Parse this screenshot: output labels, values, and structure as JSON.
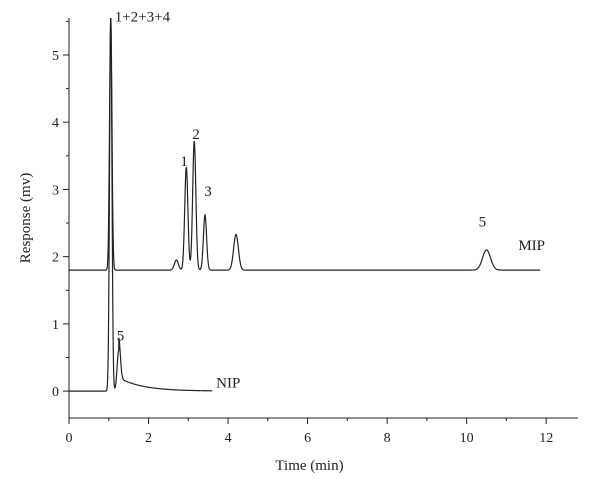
{
  "chart_data": {
    "type": "line",
    "xlabel": "Time (min)",
    "ylabel": "Response (mv)",
    "xlim": [
      0,
      12.8
    ],
    "ylim": [
      -0.4,
      5.55
    ],
    "xticks": [
      0,
      2,
      4,
      6,
      8,
      10,
      12
    ],
    "yticks": [
      0,
      1,
      2,
      3,
      4,
      5
    ],
    "grid": false,
    "series": [
      {
        "name": "MIP",
        "baseline": 1.8,
        "x_range": [
          0,
          11.85
        ],
        "peaks": [
          {
            "x": 1.05,
            "y": 5.55,
            "width": 0.03
          },
          {
            "x": 2.7,
            "y": 1.95,
            "width": 0.05
          },
          {
            "x": 2.95,
            "y": 3.33,
            "width": 0.04
          },
          {
            "x": 3.15,
            "y": 3.72,
            "width": 0.04
          },
          {
            "x": 3.42,
            "y": 2.62,
            "width": 0.04
          },
          {
            "x": 4.2,
            "y": 2.33,
            "width": 0.06
          },
          {
            "x": 10.5,
            "y": 2.1,
            "width": 0.1
          }
        ]
      },
      {
        "name": "NIP",
        "baseline": 0.0,
        "x_range": [
          0,
          3.6
        ],
        "peaks": [
          {
            "x": 1.05,
            "y": 5.55,
            "width": 0.03
          },
          {
            "x": 1.25,
            "y": 0.6,
            "width": 0.04
          }
        ]
      }
    ],
    "annotations": [
      {
        "text": "1+2+3+4",
        "x": 1.15,
        "y": 5.5
      },
      {
        "text": "1",
        "x": 2.8,
        "y": 3.35
      },
      {
        "text": "2",
        "x": 3.1,
        "y": 3.75
      },
      {
        "text": "3",
        "x": 3.4,
        "y": 2.9
      },
      {
        "text": "5",
        "x": 10.3,
        "y": 2.45
      },
      {
        "text": "MIP",
        "x": 11.3,
        "y": 2.1
      },
      {
        "text": "5",
        "x": 1.2,
        "y": 0.75
      },
      {
        "text": "NIP",
        "x": 3.7,
        "y": 0.05
      }
    ]
  }
}
